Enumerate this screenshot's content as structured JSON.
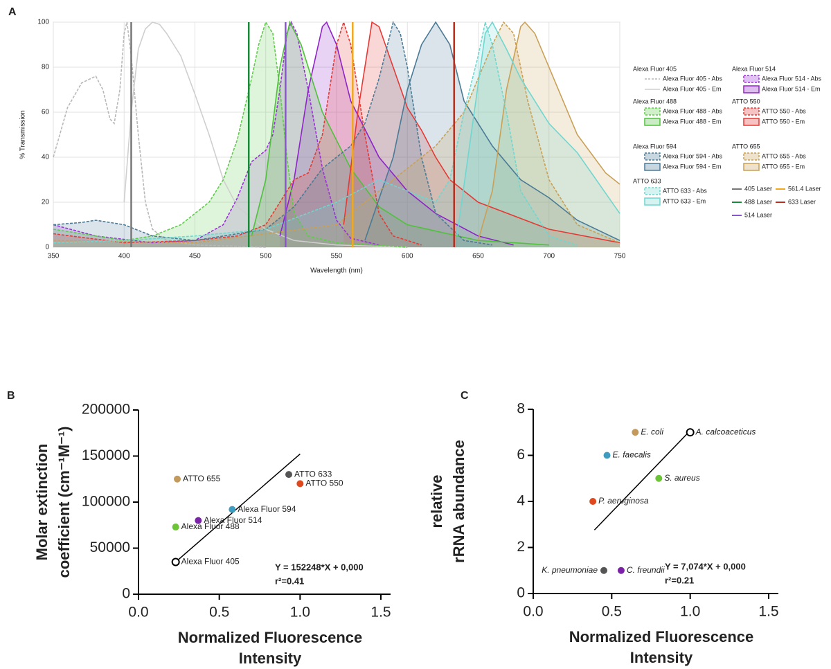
{
  "chart_data": [
    {
      "type": "area",
      "panel_label": "A",
      "xlabel": "Wavelength (nm)",
      "ylabel": "% Transmission",
      "xlim": [
        350,
        750
      ],
      "xticks": [
        350,
        400,
        450,
        500,
        550,
        600,
        650,
        700,
        750
      ],
      "ylim": [
        0,
        100
      ],
      "yticks": [
        0,
        20,
        40,
        60,
        80,
        100
      ],
      "grid": true,
      "legend_groups": [
        {
          "title": "Alexa Fluor 405",
          "series": [
            {
              "name": "Alexa Fluor 405 - Abs",
              "color": "#b8b8b8",
              "dashed": true,
              "filled": false,
              "x": [
                350,
                360,
                370,
                380,
                385,
                390,
                393,
                397,
                400,
                402,
                405,
                410,
                415,
                420,
                430,
                450,
                500
              ],
              "values": [
                40,
                62,
                73,
                76,
                70,
                57,
                55,
                70,
                95,
                100,
                85,
                50,
                20,
                8,
                3,
                1,
                0
              ]
            },
            {
              "name": "Alexa Fluor 405 - Em",
              "color": "#cfcfcf",
              "dashed": false,
              "filled": false,
              "x": [
                400,
                405,
                410,
                415,
                420,
                425,
                430,
                440,
                450,
                460,
                470,
                480,
                500,
                520,
                550,
                600
              ],
              "values": [
                20,
                60,
                88,
                97,
                100,
                99,
                95,
                85,
                68,
                50,
                30,
                18,
                8,
                3,
                1,
                0
              ]
            }
          ]
        },
        {
          "title": "Alexa Fluor 514",
          "series": [
            {
              "name": "Alexa Fluor 514 - Abs",
              "color": "#9b30d9",
              "dashed": true,
              "filled": true,
              "x": [
                350,
                380,
                420,
                450,
                470,
                480,
                490,
                500,
                505,
                510,
                515,
                518,
                522,
                530,
                540,
                550,
                560,
                580
              ],
              "values": [
                10,
                5,
                2,
                3,
                10,
                22,
                38,
                43,
                50,
                70,
                95,
                100,
                95,
                70,
                35,
                12,
                4,
                1
              ]
            },
            {
              "name": "Alexa Fluor 514 - Em",
              "color": "#8e24c8",
              "dashed": false,
              "filled": true,
              "x": [
                510,
                520,
                530,
                540,
                543,
                550,
                560,
                580,
                600,
                620,
                650,
                675
              ],
              "values": [
                5,
                30,
                70,
                98,
                100,
                90,
                65,
                40,
                25,
                15,
                5,
                1
              ]
            }
          ]
        },
        {
          "title": "Alexa Fluor 488",
          "series": [
            {
              "name": "Alexa Fluor 488 - Abs",
              "color": "#5fcc4a",
              "dashed": true,
              "filled": true,
              "x": [
                350,
                400,
                420,
                440,
                460,
                470,
                480,
                490,
                495,
                500,
                505,
                510,
                515,
                520,
                530,
                550,
                600
              ],
              "values": [
                8,
                3,
                5,
                10,
                20,
                30,
                48,
                75,
                90,
                100,
                95,
                70,
                40,
                15,
                5,
                2,
                0
              ]
            },
            {
              "name": "Alexa Fluor 488 - Em",
              "color": "#4fc13b",
              "dashed": false,
              "filled": true,
              "x": [
                490,
                500,
                510,
                517,
                525,
                540,
                560,
                580,
                600,
                650,
                700
              ],
              "values": [
                5,
                30,
                80,
                100,
                90,
                60,
                35,
                18,
                10,
                3,
                1
              ]
            }
          ]
        },
        {
          "title": "ATTO 550",
          "series": [
            {
              "name": "ATTO 550 - Abs",
              "color": "#e53935",
              "dashed": true,
              "filled": true,
              "x": [
                350,
                400,
                450,
                480,
                500,
                510,
                520,
                530,
                540,
                550,
                555,
                560,
                570,
                580,
                590,
                610
              ],
              "values": [
                6,
                2,
                3,
                5,
                10,
                20,
                30,
                33,
                50,
                90,
                100,
                90,
                50,
                15,
                5,
                1
              ]
            },
            {
              "name": "ATTO 550 - Em",
              "color": "#e53935",
              "dashed": false,
              "filled": true,
              "x": [
                555,
                565,
                575,
                580,
                590,
                600,
                610,
                620,
                630,
                650,
                700,
                750
              ],
              "values": [
                10,
                60,
                100,
                98,
                80,
                62,
                52,
                40,
                30,
                20,
                8,
                2
              ]
            }
          ]
        },
        {
          "title": "Alexa Fluor 594",
          "series": [
            {
              "name": "Alexa Fluor 594 - Abs",
              "color": "#4a7a96",
              "dashed": true,
              "filled": true,
              "x": [
                350,
                370,
                380,
                400,
                420,
                450,
                500,
                520,
                540,
                560,
                570,
                580,
                590,
                595,
                600,
                610,
                620,
                640,
                660
              ],
              "values": [
                10,
                11,
                12,
                10,
                5,
                3,
                8,
                18,
                35,
                45,
                55,
                75,
                100,
                95,
                80,
                40,
                15,
                3,
                1
              ]
            },
            {
              "name": "Alexa Fluor 594 - Em",
              "color": "#4a7a96",
              "dashed": false,
              "filled": true,
              "x": [
                570,
                590,
                600,
                610,
                620,
                630,
                640,
                660,
                680,
                700,
                720,
                750
              ],
              "values": [
                3,
                40,
                70,
                90,
                100,
                90,
                65,
                45,
                30,
                22,
                12,
                3
              ]
            }
          ]
        },
        {
          "title": "ATTO 655",
          "series": [
            {
              "name": "ATTO 655 - Abs",
              "color": "#c9a055",
              "dashed": true,
              "filled": true,
              "x": [
                350,
                450,
                550,
                600,
                620,
                640,
                660,
                668,
                675,
                685,
                700,
                720,
                750
              ],
              "values": [
                3,
                2,
                10,
                35,
                45,
                60,
                90,
                100,
                95,
                65,
                30,
                10,
                2
              ]
            },
            {
              "name": "ATTO 655 - Em",
              "color": "#c9a055",
              "dashed": false,
              "filled": true,
              "x": [
                650,
                660,
                670,
                680,
                683,
                690,
                700,
                720,
                740,
                750
              ],
              "values": [
                3,
                25,
                70,
                98,
                100,
                95,
                80,
                50,
                33,
                28
              ]
            }
          ]
        },
        {
          "title": "ATTO 633",
          "series": [
            {
              "name": "ATTO 633 - Abs",
              "color": "#6fd6d0",
              "dashed": true,
              "filled": true,
              "x": [
                350,
                400,
                450,
                500,
                550,
                580,
                600,
                620,
                630,
                640,
                650,
                655,
                660,
                670,
                680,
                700,
                720
              ],
              "values": [
                2,
                3,
                5,
                8,
                20,
                30,
                25,
                20,
                30,
                60,
                85,
                100,
                90,
                60,
                25,
                5,
                1
              ]
            },
            {
              "name": "ATTO 633 - Em",
              "color": "#6fd6d0",
              "dashed": false,
              "filled": true,
              "x": [
                635,
                645,
                655,
                660,
                670,
                680,
                700,
                720,
                750
              ],
              "values": [
                5,
                50,
                95,
                100,
                88,
                75,
                55,
                42,
                15
              ]
            }
          ]
        }
      ],
      "lasers": [
        {
          "name": "405 Laser",
          "color": "#777777",
          "x": 405
        },
        {
          "name": "561.4 Laser",
          "color": "#f0a81c",
          "x": 561.4
        },
        {
          "name": "488 Laser",
          "color": "#1a8a3a",
          "x": 488
        },
        {
          "name": "633 Laser",
          "color": "#b53020",
          "x": 633
        },
        {
          "name": "514 Laser",
          "color": "#8855cc",
          "x": 514
        }
      ]
    },
    {
      "type": "scatter",
      "panel_label": "B",
      "xlabel": [
        "Normalized Fluorescence",
        "Intensity"
      ],
      "ylabel": [
        "Molar extinction",
        "coefficient (cm⁻¹M⁻¹)"
      ],
      "xlim": [
        0,
        1.5
      ],
      "xticks": [
        {
          "value": 0,
          "label": "0.0"
        },
        0.5,
        {
          "value": 1,
          "label": "1.0"
        },
        1.5
      ],
      "ylim": [
        0,
        200000
      ],
      "yticks": [
        0,
        50000,
        100000,
        150000,
        200000
      ],
      "labels": [
        "ATTO 655",
        "ATTO 633",
        "ATTO 550",
        "Alexa Fluor 594",
        "Alexa Fluor 514",
        "Alexa Fluor 488",
        "Alexa Fluor 405"
      ],
      "x": [
        0.24,
        0.93,
        1.0,
        0.58,
        0.37,
        0.23,
        0.23
      ],
      "values": [
        125000,
        130000,
        120000,
        92000,
        80000,
        73000,
        35000
      ],
      "colors": [
        "#c49a5c",
        "#555555",
        "#e0481e",
        "#3d9cc0",
        "#7b22a8",
        "#6cc437",
        "#ffffff"
      ],
      "fit": {
        "label": "Y = 152248*X + 0,000",
        "slope": 152248,
        "intercept": 0,
        "x": [
          0.23,
          1.0
        ]
      },
      "r2_label": "r²=0.41"
    },
    {
      "type": "scatter",
      "panel_label": "C",
      "xlabel": [
        "Normalized Fluorescence",
        "Intensity"
      ],
      "ylabel": [
        "relative",
        "rRNA abundance"
      ],
      "xlim": [
        0,
        1.5
      ],
      "xticks": [
        {
          "value": 0,
          "label": "0.0"
        },
        0.5,
        {
          "value": 1,
          "label": "1.0"
        },
        1.5
      ],
      "ylim": [
        0,
        8
      ],
      "yticks": [
        0,
        2,
        4,
        6,
        8
      ],
      "italic_labels": true,
      "labels": [
        "E. coli",
        "A. calcoaceticus",
        "E. faecalis",
        "S. aureus",
        "P. aeruginosa",
        "K. pneumoniae",
        "C. freundii"
      ],
      "x": [
        0.65,
        1.0,
        0.47,
        0.8,
        0.38,
        0.45,
        0.56
      ],
      "values": [
        7,
        7,
        6,
        5,
        4,
        1,
        1
      ],
      "colors": [
        "#c49a5c",
        "#ffffff",
        "#3d9cc0",
        "#6cc437",
        "#e0481e",
        "#555555",
        "#7b22a8"
      ],
      "fit": {
        "label": "Y = 7,074*X + 0,000",
        "slope": 7.074,
        "intercept": 0,
        "x": [
          0.39,
          1.0
        ]
      },
      "r2_label": "r²=0.21"
    }
  ]
}
